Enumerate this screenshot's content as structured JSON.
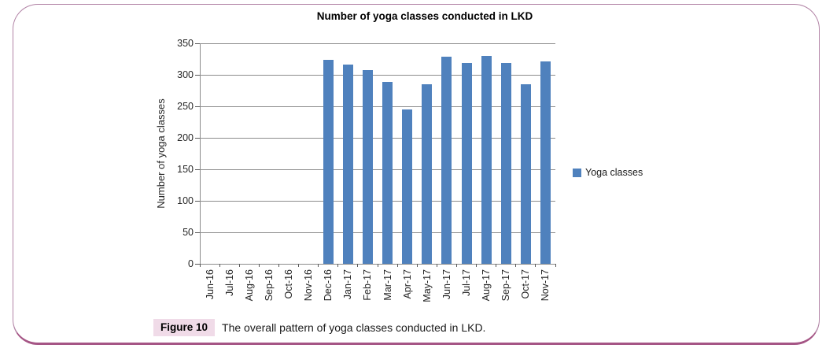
{
  "frame": {
    "border_color": "#b284a6",
    "bottom_bar_color": "#a55585"
  },
  "chart_data": {
    "type": "bar",
    "title": "Number of yoga classes conducted in LKD",
    "xlabel": "",
    "ylabel": "Number of yoga classes",
    "categories": [
      "Jun-16",
      "Jul-16",
      "Aug-16",
      "Sep-16",
      "Oct-16",
      "Nov-16",
      "Dec-16",
      "Jan-17",
      "Feb-17",
      "Mar-17",
      "Apr-17",
      "May-17",
      "Jun-17",
      "Jul-17",
      "Aug-17",
      "Sep-17",
      "Oct-17",
      "Nov-17"
    ],
    "series": [
      {
        "name": "Yoga classes",
        "values": [
          null,
          null,
          null,
          null,
          null,
          null,
          324,
          316,
          307,
          289,
          245,
          285,
          329,
          319,
          330,
          319,
          285,
          321
        ]
      }
    ],
    "ylim": [
      0,
      350
    ],
    "ytick_step": 50,
    "grid": true,
    "legend_position": "right",
    "bar_color": "#4f81bd",
    "gridline_color": "#8c8c8c"
  },
  "caption": {
    "label": "Figure 10",
    "text": "The overall pattern of yoga classes conducted in LKD.",
    "highlight_color": "#f0dbe8"
  }
}
